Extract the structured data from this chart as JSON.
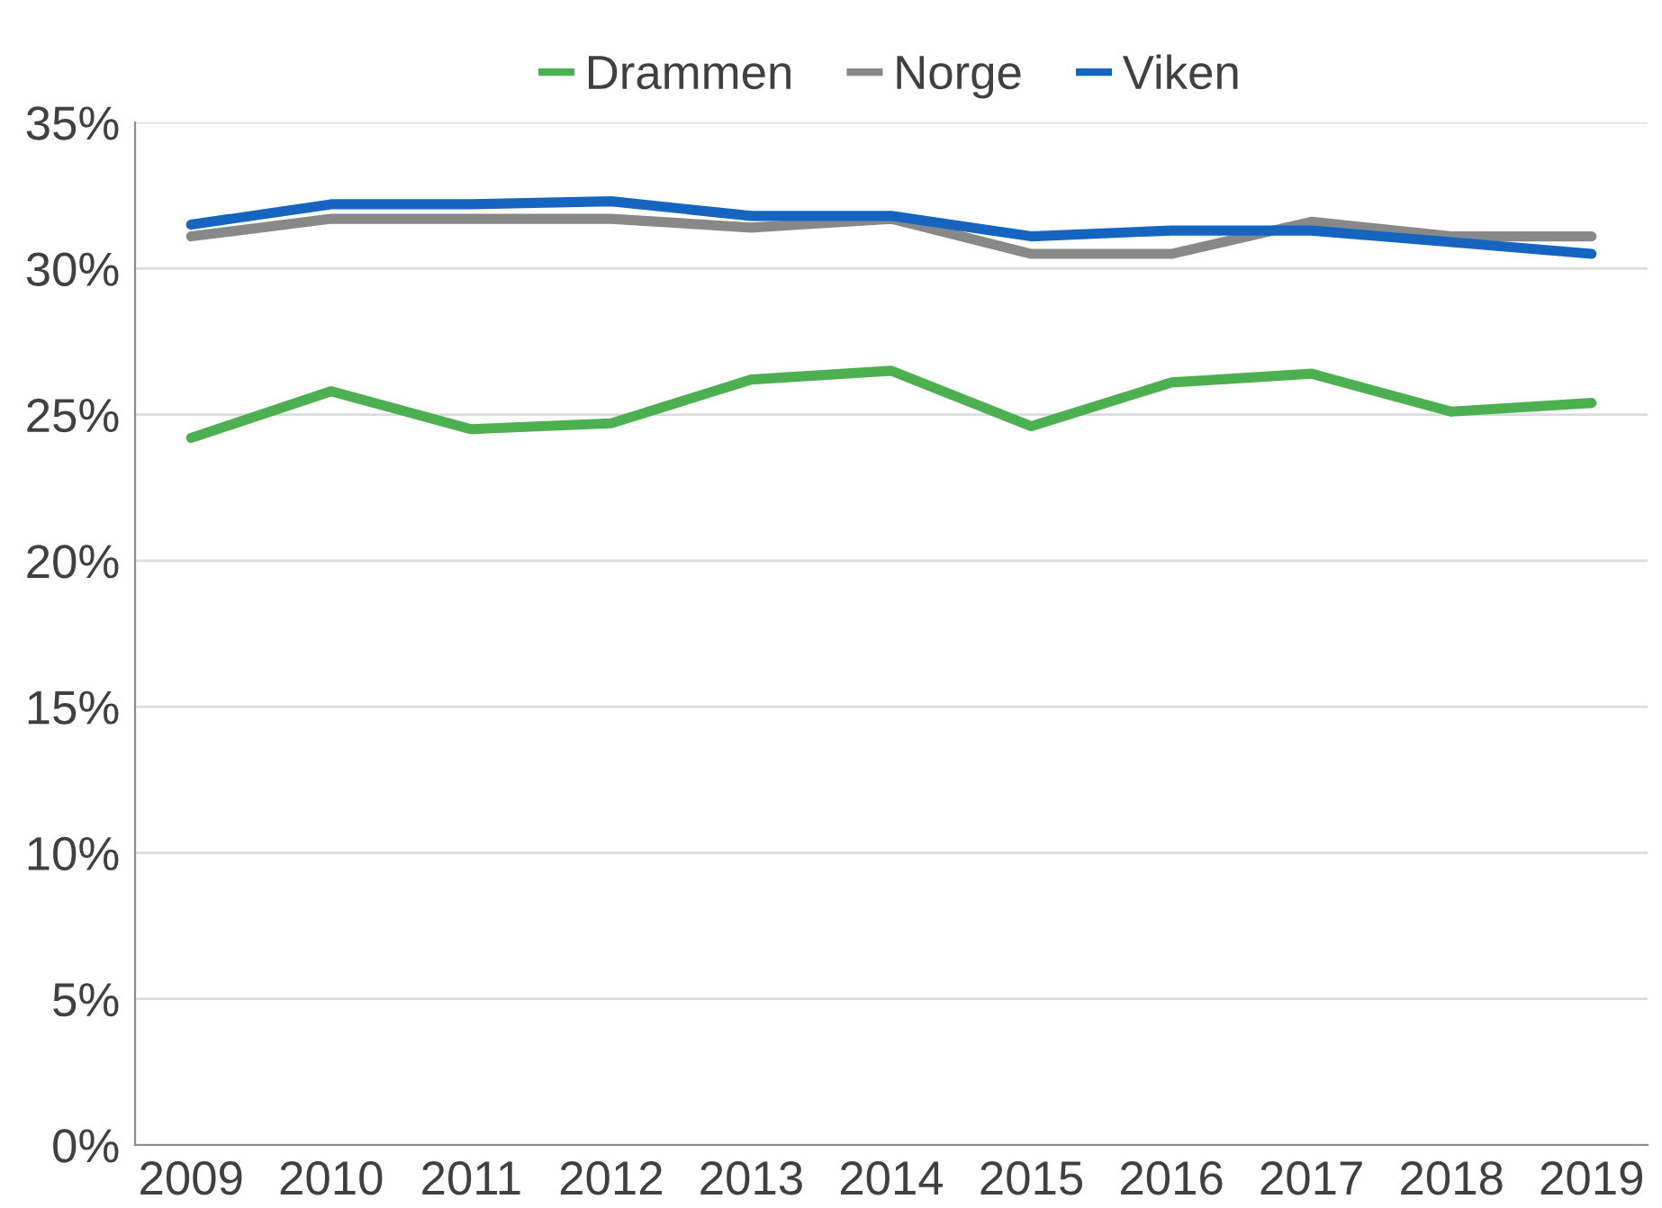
{
  "chart_data": {
    "type": "line",
    "categories": [
      "2009",
      "2010",
      "2011",
      "2012",
      "2013",
      "2014",
      "2015",
      "2016",
      "2017",
      "2018",
      "2019"
    ],
    "series": [
      {
        "name": "Drammen",
        "color": "#4caf50",
        "values": [
          24.2,
          25.8,
          24.5,
          24.7,
          26.2,
          26.5,
          24.6,
          26.1,
          26.4,
          25.1,
          25.4
        ]
      },
      {
        "name": "Norge",
        "color": "#888888",
        "values": [
          31.1,
          31.7,
          31.7,
          31.7,
          31.4,
          31.7,
          30.5,
          30.5,
          31.6,
          31.1,
          31.1
        ]
      },
      {
        "name": "Viken",
        "color": "#1565c0",
        "values": [
          31.5,
          32.2,
          32.2,
          32.3,
          31.8,
          31.8,
          31.1,
          31.3,
          31.3,
          30.9,
          30.5
        ]
      }
    ],
    "ylim": [
      0,
      35
    ],
    "yticks": [
      {
        "value": 0,
        "label": "0%"
      },
      {
        "value": 5,
        "label": "5%"
      },
      {
        "value": 10,
        "label": "10%"
      },
      {
        "value": 15,
        "label": "15%"
      },
      {
        "value": 20,
        "label": "20%"
      },
      {
        "value": 25,
        "label": "25%"
      },
      {
        "value": 30,
        "label": "30%"
      },
      {
        "value": 35,
        "label": "35%"
      }
    ],
    "grid": "y",
    "legend": "top",
    "marker": "none",
    "line_style": "solid"
  }
}
